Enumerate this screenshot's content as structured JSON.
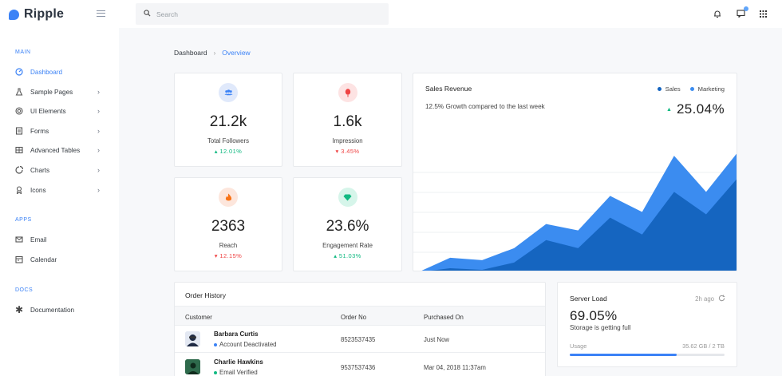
{
  "app": {
    "name": "Ripple"
  },
  "search": {
    "placeholder": "Search"
  },
  "sidebar": {
    "sections": [
      {
        "label": "MAIN",
        "items": [
          {
            "label": "Dashboard",
            "icon": "dashboard-icon",
            "active": true,
            "has_submenu": false
          },
          {
            "label": "Sample Pages",
            "icon": "flask-icon",
            "active": false,
            "has_submenu": true
          },
          {
            "label": "UI Elements",
            "icon": "target-icon",
            "active": false,
            "has_submenu": true
          },
          {
            "label": "Forms",
            "icon": "document-icon",
            "active": false,
            "has_submenu": true
          },
          {
            "label": "Advanced Tables",
            "icon": "table-icon",
            "active": false,
            "has_submenu": true
          },
          {
            "label": "Charts",
            "icon": "pie-chart-icon",
            "active": false,
            "has_submenu": true
          },
          {
            "label": "Icons",
            "icon": "badge-icon",
            "active": false,
            "has_submenu": true
          }
        ]
      },
      {
        "label": "APPS",
        "items": [
          {
            "label": "Email",
            "icon": "mail-icon",
            "active": false,
            "has_submenu": false
          },
          {
            "label": "Calendar",
            "icon": "calendar-icon",
            "active": false,
            "has_submenu": false
          }
        ]
      },
      {
        "label": "DOCS",
        "items": [
          {
            "label": "Documentation",
            "icon": "asterisk-icon",
            "active": false,
            "has_submenu": false
          }
        ]
      }
    ]
  },
  "breadcrumb": {
    "parent": "Dashboard",
    "current": "Overview"
  },
  "stats": [
    {
      "value": "21.2k",
      "label": "Total Followers",
      "change": "12.01%",
      "direction": "up",
      "icon": "users-icon",
      "icon_color": "#3b82f6",
      "icon_bg": "#e0e9fb"
    },
    {
      "value": "1.6k",
      "label": "Impression",
      "change": "3.45%",
      "direction": "down",
      "icon": "balloon-icon",
      "icon_color": "#ef4444",
      "icon_bg": "#fde3e3"
    },
    {
      "value": "2363",
      "label": "Reach",
      "change": "12.15%",
      "direction": "down",
      "icon": "fire-icon",
      "icon_color": "#f97316",
      "icon_bg": "#fde6dc"
    },
    {
      "value": "23.6%",
      "label": "Engagement Rate",
      "change": "51.03%",
      "direction": "up",
      "icon": "diamond-icon",
      "icon_color": "#10b981",
      "icon_bg": "#d6f5ea"
    }
  ],
  "sales_revenue": {
    "title": "Sales Revenue",
    "subtitle": "12.5% Growth compared to the last week",
    "growth": "25.04%",
    "legend": [
      {
        "label": "Sales",
        "color": "#1565c0"
      },
      {
        "label": "Marketing",
        "color": "#3b8cf0"
      }
    ]
  },
  "chart_data": {
    "type": "area",
    "title": "Sales Revenue",
    "x": [
      0,
      1,
      2,
      3,
      4,
      5,
      6,
      7,
      8,
      9,
      10
    ],
    "series": [
      {
        "name": "Sales",
        "values": [
          0,
          18,
          15,
          30,
          60,
          52,
          95,
          75,
          145,
          100,
          150
        ]
      },
      {
        "name": "Marketing",
        "values": [
          0,
          5,
          3,
          12,
          40,
          30,
          68,
          47,
          100,
          72,
          118
        ]
      }
    ],
    "ylim": [
      0,
      160
    ],
    "grid": true,
    "legend": "top-right"
  },
  "order_history": {
    "title": "Order History",
    "columns": [
      "Customer",
      "Order No",
      "Purchased On"
    ],
    "rows": [
      {
        "name": "Barbara Curtis",
        "status": "Account Deactivated",
        "status_color": "#3b82f6",
        "order_no": "8523537435",
        "purchased_on": "Just Now",
        "avatar": "avatar-dark"
      },
      {
        "name": "Charlie Hawkins",
        "status": "Email Verified",
        "status_color": "#10b981",
        "order_no": "9537537436",
        "purchased_on": "Mar 04, 2018 11:37am",
        "avatar": "avatar-green"
      }
    ]
  },
  "server_load": {
    "title": "Server Load",
    "updated": "2h ago",
    "value": "69.05%",
    "subtitle": "Storage is getting full",
    "usage_label": "Usage",
    "capacity": "35.62 GB / 2 TB",
    "usage_fraction": 0.69
  }
}
